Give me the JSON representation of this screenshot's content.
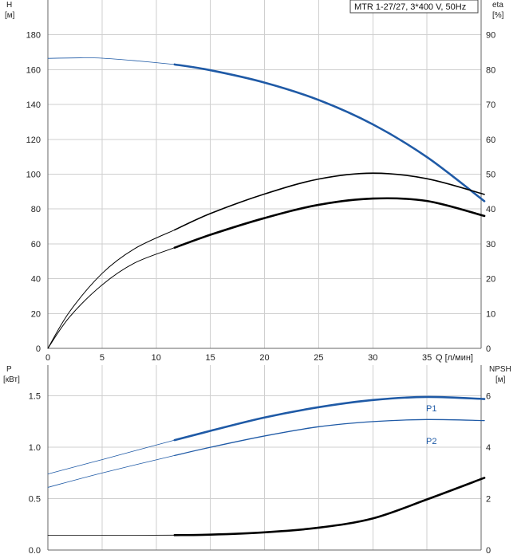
{
  "title": "MTR 1-27/27, 3*400 V, 50Hz",
  "colors": {
    "blue": "#1f5aa6",
    "black": "#000000",
    "grid": "#cfcfcf"
  },
  "chart_data": [
    {
      "type": "line",
      "xlabel": "Q [л/мин]",
      "xlim": [
        0,
        40
      ],
      "xticks": [
        0,
        5,
        10,
        15,
        20,
        25,
        30,
        35
      ],
      "grid": true,
      "y_left": {
        "label_line1": "H",
        "label_line2": "[м]",
        "lim": [
          0,
          200
        ],
        "ticks": [
          0,
          20,
          40,
          60,
          80,
          100,
          120,
          140,
          160,
          180
        ]
      },
      "y_right": {
        "label_line1": "eta",
        "label_line2": "[%]",
        "lim": [
          0,
          100
        ],
        "ticks": [
          0,
          10,
          20,
          30,
          40,
          50,
          60,
          70,
          80,
          90
        ]
      },
      "series": [
        {
          "axis": "left",
          "color": "blue",
          "thick_from": 11.7,
          "x": [
            0,
            3,
            5,
            8,
            11.7,
            15,
            20,
            25,
            30,
            35,
            40.3
          ],
          "y": [
            166.5,
            166.8,
            166.6,
            165.2,
            163,
            159.7,
            152.6,
            142.6,
            128.6,
            109.8,
            84.5
          ]
        },
        {
          "axis": "right",
          "color": "black",
          "thick_from": 11.7,
          "width_thin": 1,
          "width_thick": 1.6,
          "x": [
            0,
            2,
            5,
            8,
            11.7,
            15,
            20,
            25,
            30,
            35,
            40.3
          ],
          "y": [
            0,
            10.5,
            21.5,
            28.6,
            34,
            38.7,
            44.3,
            48.6,
            50.3,
            48.7,
            44.2
          ]
        },
        {
          "axis": "right",
          "color": "black",
          "thick_from": 11.7,
          "width_thin": 1,
          "width_thick": 2.6,
          "x": [
            0,
            2,
            5,
            8,
            11.7,
            15,
            20,
            25,
            30,
            35,
            40.3
          ],
          "y": [
            0,
            9,
            18.2,
            24.5,
            28.9,
            32.6,
            37.4,
            41.2,
            43,
            42.3,
            38
          ]
        }
      ]
    },
    {
      "type": "line",
      "xlim": [
        0,
        40
      ],
      "xticks": [
        0,
        5,
        10,
        15,
        20,
        25,
        30,
        35
      ],
      "grid": true,
      "y_left": {
        "label_line1": "P",
        "label_line2": "[кВт]",
        "lim": [
          0,
          1.8
        ],
        "ticks": [
          0.0,
          0.5,
          1.0,
          1.5
        ],
        "tick_labels": [
          "0.0",
          "0.5",
          "1.0",
          "1.5"
        ]
      },
      "y_right": {
        "label_line1": "NPSH",
        "label_line2": "[м]",
        "lim": [
          0,
          7.2
        ],
        "ticks": [
          0,
          2,
          4,
          6
        ]
      },
      "series": [
        {
          "name": "P1",
          "axis": "left",
          "color": "blue",
          "thick_from": 11.7,
          "x": [
            0,
            5,
            11.7,
            15,
            20,
            25,
            30,
            35,
            40.3
          ],
          "y": [
            0.74,
            0.88,
            1.07,
            1.16,
            1.29,
            1.39,
            1.46,
            1.49,
            1.47
          ]
        },
        {
          "name": "P2",
          "axis": "left",
          "color": "blue",
          "thick_from": 11.7,
          "width_thin": 0.8,
          "width_thick": 1.3,
          "x": [
            0,
            5,
            11.7,
            15,
            20,
            25,
            30,
            35,
            40.3
          ],
          "y": [
            0.61,
            0.75,
            0.92,
            1.0,
            1.11,
            1.2,
            1.25,
            1.27,
            1.26
          ]
        },
        {
          "axis": "right",
          "color": "black",
          "thick_from": 11.7,
          "width_thin": 0.8,
          "width_thick": 2.6,
          "x": [
            0,
            5,
            11.7,
            15,
            20,
            25,
            30,
            35,
            40.3
          ],
          "y": [
            0.57,
            0.57,
            0.58,
            0.6,
            0.69,
            0.87,
            1.23,
            1.97,
            2.81
          ]
        }
      ]
    }
  ]
}
